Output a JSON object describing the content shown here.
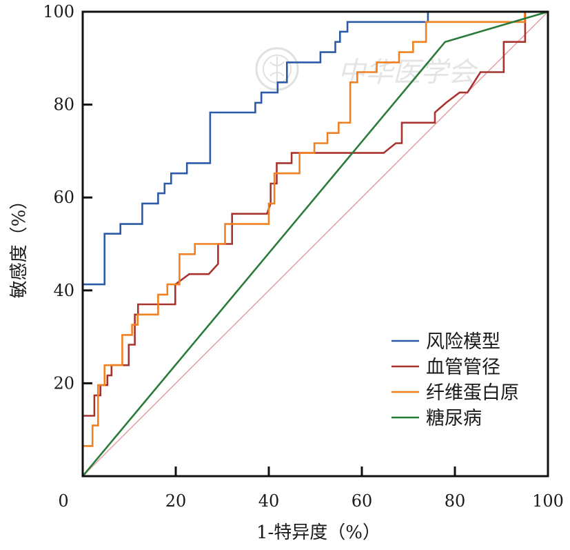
{
  "watermark": {
    "text": "中华医学会"
  },
  "chart_data": {
    "type": "line",
    "title": "",
    "xlabel": "1-特异度（%）",
    "ylabel": "敏感度（%）",
    "xlim": [
      0,
      100
    ],
    "ylim": [
      0,
      100
    ],
    "x_ticks": [
      0,
      20,
      40,
      60,
      80,
      100
    ],
    "y_ticks": [
      20,
      40,
      60,
      80,
      100
    ],
    "grid": false,
    "legend_position": "bottom-right",
    "reference_line": {
      "from": [
        0,
        0
      ],
      "to": [
        100,
        100
      ],
      "color": "#e0a0a0"
    },
    "series": [
      {
        "name": "风险模型",
        "color": "#2b5aa8",
        "x": [
          0,
          0,
          4.7,
          4.7,
          8.1,
          8.1,
          12.8,
          12.8,
          16.2,
          16.2,
          17.6,
          17.6,
          19,
          19,
          20.2,
          20.2,
          22.4,
          22.4,
          27.4,
          27.4,
          37.1,
          37.1,
          38.4,
          38.4,
          41.9,
          41.9,
          43.9,
          43.9,
          45.2,
          45.2,
          51.1,
          51.1,
          54.3,
          54.3,
          55.3,
          55.3,
          56.9,
          56.9,
          60.1,
          60.1,
          74.2,
          74.2,
          100
        ],
        "y": [
          0,
          41.3,
          41.3,
          52.2,
          52.2,
          54.3,
          54.3,
          58.7,
          58.7,
          60.9,
          60.9,
          63,
          63,
          65.2,
          65.2,
          65.2,
          65.2,
          67.4,
          67.4,
          78.3,
          78.3,
          80.4,
          80.4,
          82.6,
          82.6,
          84.8,
          84.8,
          89.1,
          89.1,
          89.1,
          89.1,
          91.3,
          91.3,
          93.5,
          93.5,
          95.7,
          95.7,
          97.8,
          97.8,
          97.8,
          97.8,
          100,
          100
        ]
      },
      {
        "name": "血管管径",
        "color": "#a8322d",
        "x": [
          0,
          0,
          1.4,
          1.4,
          2.5,
          2.5,
          3.8,
          3.8,
          5.3,
          5.3,
          6.2,
          6.2,
          8.1,
          8.1,
          9.9,
          9.9,
          11.2,
          11.2,
          11.9,
          11.9,
          17.4,
          17.4,
          19.9,
          19.9,
          22.9,
          27.1,
          29.1,
          29.1,
          32.1,
          32.1,
          39.3,
          39.6,
          40.4,
          40.4,
          41.7,
          41.7,
          43.5,
          43.5,
          44.9,
          44.9,
          47.1,
          64.7,
          67.3,
          68.6,
          68.6,
          75.7,
          75.7,
          78.1,
          78.1,
          81,
          81,
          82.7,
          82.7,
          84.1,
          84.1,
          85.5,
          85.5,
          90.5,
          90.5,
          95.1,
          95.1,
          100
        ],
        "y": [
          0,
          13,
          13,
          13,
          13,
          17.4,
          17.4,
          19.6,
          19.6,
          21.7,
          21.7,
          23.9,
          23.9,
          23.9,
          23.9,
          28.3,
          28.3,
          34.8,
          34.8,
          37,
          37,
          37,
          37,
          41.3,
          43.5,
          43.5,
          45.7,
          50,
          50,
          56.5,
          56.5,
          56.5,
          58.7,
          63,
          63,
          67.4,
          67.4,
          67.4,
          67.4,
          69.6,
          69.6,
          69.6,
          71.7,
          71.7,
          76.1,
          76.1,
          78.3,
          80.4,
          80.4,
          82.6,
          82.6,
          82.6,
          82.6,
          84.8,
          84.8,
          87,
          87,
          87,
          93.5,
          93.5,
          100,
          100
        ]
      },
      {
        "name": "纤维蛋白原",
        "color": "#f08020",
        "x": [
          0,
          0,
          1.5,
          1.5,
          2.1,
          2.1,
          3.3,
          3.3,
          4.7,
          4.7,
          6.2,
          6.2,
          8.5,
          8.5,
          10.6,
          10.6,
          11.8,
          11.8,
          13.4,
          13.4,
          16.2,
          16.2,
          18.2,
          18.2,
          20.8,
          20.8,
          24.1,
          24.1,
          30.6,
          30.6,
          35.9,
          35.9,
          40,
          40,
          41.2,
          41.2,
          46.6,
          46.6,
          49.8,
          49.8,
          52.6,
          52.6,
          55,
          55,
          57.5,
          57.5,
          59,
          59,
          63.2,
          63.2,
          68,
          68,
          71,
          71,
          73.8,
          73.8,
          77.9,
          77.9,
          82.1,
          82.1,
          95,
          95,
          100
        ],
        "y": [
          0,
          6.5,
          6.5,
          6.5,
          6.5,
          10.9,
          10.9,
          19.6,
          19.6,
          23.9,
          23.9,
          23.9,
          23.9,
          30.4,
          30.4,
          32.6,
          32.6,
          34.8,
          34.8,
          34.8,
          34.8,
          39.1,
          39.1,
          41.3,
          41.3,
          47.8,
          47.8,
          50,
          50,
          54.3,
          54.3,
          54.3,
          54.3,
          58.7,
          58.7,
          65.2,
          65.2,
          69.6,
          69.6,
          71.7,
          71.7,
          73.9,
          73.9,
          76.1,
          76.1,
          84.8,
          84.8,
          87,
          87,
          89.1,
          89.1,
          91.3,
          91.3,
          93.5,
          93.5,
          97.8,
          97.8,
          97.8,
          97.8,
          97.8,
          97.8,
          100,
          100
        ]
      },
      {
        "name": "糖尿病",
        "color": "#2a7a3a",
        "x": [
          0,
          77.9,
          100
        ],
        "y": [
          0,
          93.5,
          100
        ]
      }
    ]
  }
}
